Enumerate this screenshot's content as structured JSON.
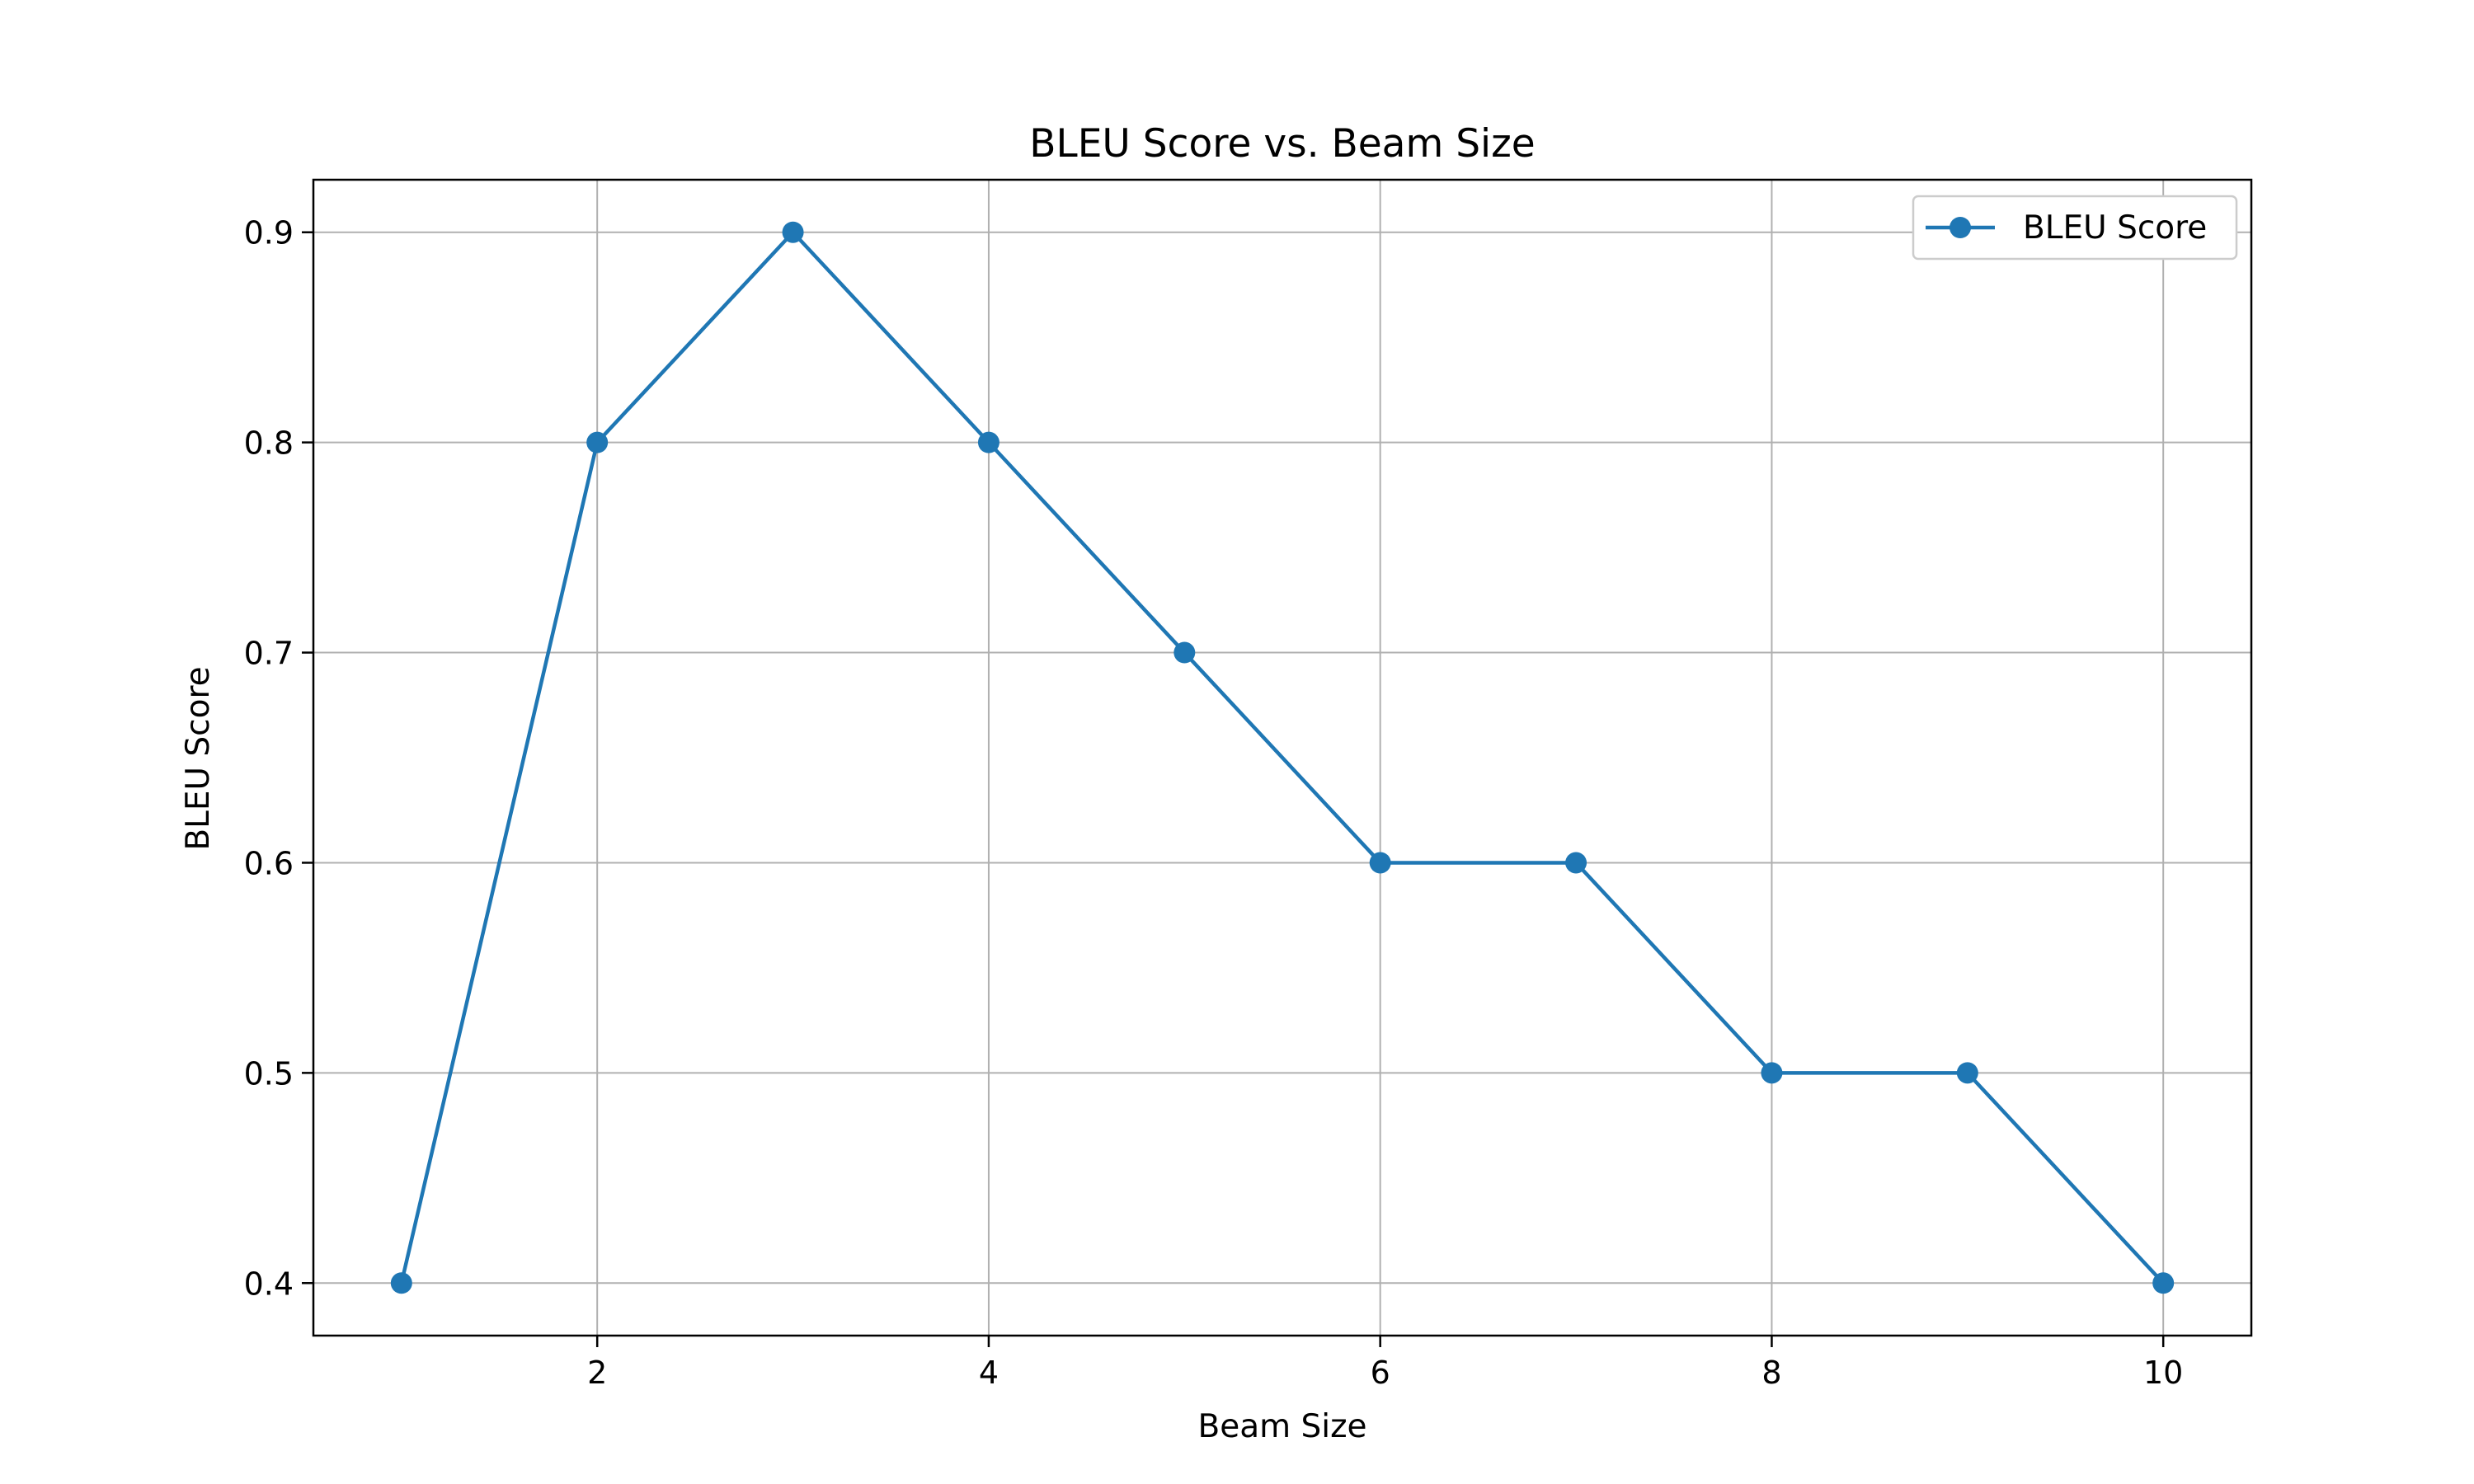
{
  "chart_data": {
    "type": "line",
    "title": "BLEU Score vs. Beam Size",
    "xlabel": "Beam Size",
    "ylabel": "BLEU Score",
    "x": [
      1,
      2,
      3,
      4,
      5,
      6,
      7,
      8,
      9,
      10
    ],
    "series": [
      {
        "name": "BLEU Score",
        "values": [
          0.4,
          0.8,
          0.9,
          0.8,
          0.7,
          0.6,
          0.6,
          0.5,
          0.5,
          0.4
        ],
        "color": "#1f77b4",
        "marker": "circle"
      }
    ],
    "xlim": [
      0.55,
      10.45
    ],
    "ylim": [
      0.375,
      0.925
    ],
    "xticks": [
      2,
      4,
      6,
      8,
      10
    ],
    "yticks": [
      0.4,
      0.5,
      0.6,
      0.7,
      0.8,
      0.9
    ],
    "xtick_labels": [
      "2",
      "4",
      "6",
      "8",
      "10"
    ],
    "ytick_labels": [
      "0.4",
      "0.5",
      "0.6",
      "0.7",
      "0.8",
      "0.9"
    ],
    "grid": true,
    "legend_position": "top-right"
  }
}
